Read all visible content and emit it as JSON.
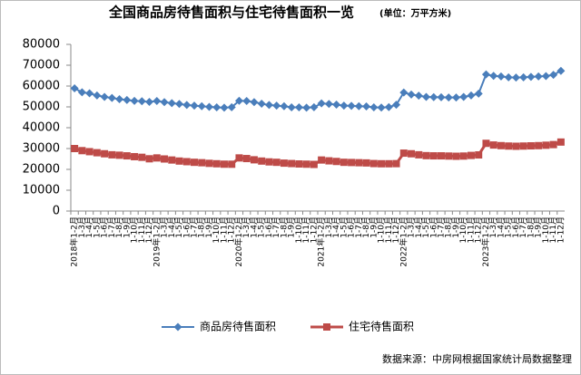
{
  "chart_data": {
    "type": "line",
    "title": "全国商品房待售面积与住宅待售面积一览",
    "subtitle": "(单位：万平方米)",
    "source": "数据来源：中房网根据国家统计局数据整理",
    "categories": [
      "2018年1-2月",
      "1-3月",
      "1-4月",
      "1-5月",
      "1-6月",
      "1-7月",
      "1-8月",
      "1-9月",
      "1-10月",
      "1-11月",
      "1-12月",
      "2019年1-2月",
      "1-3月",
      "1-4月",
      "1-5月",
      "1-6月",
      "1-7月",
      "1-8月",
      "1-9月",
      "1-10月",
      "1-11月",
      "1-12月",
      "2020年1-2月",
      "1-3月",
      "1-4月",
      "1-5月",
      "1-6月",
      "1-7月",
      "1-8月",
      "1-9月",
      "1-10月",
      "1-11月",
      "1-12月",
      "2021年1-2月",
      "1-3月",
      "1-4月",
      "1-5月",
      "1-6月",
      "1-7月",
      "1-8月",
      "1-9月",
      "1-10月",
      "1-11月",
      "1-12月",
      "2022年1-2月",
      "1-3月",
      "1-4月",
      "1-5月",
      "1-6月",
      "1-7月",
      "1-8月",
      "1-9月",
      "1-10月",
      "1-11月",
      "1-12月",
      "2023年1-2月",
      "1-3月",
      "1-4月",
      "1-5月",
      "1-6月",
      "1-7月",
      "1-8月",
      "1-9月",
      "1-10月",
      "1-11月",
      "1-12月"
    ],
    "series": [
      {
        "name": "商品房待售面积",
        "color": "#4a7ebb",
        "marker": "diamond",
        "values": [
          58923,
          57000,
          56500,
          55500,
          54800,
          54300,
          53700,
          53300,
          52900,
          52700,
          52414,
          52810,
          52300,
          51800,
          51400,
          50900,
          50600,
          50300,
          50000,
          49800,
          49600,
          49821,
          52917,
          52800,
          52300,
          51500,
          50900,
          50600,
          50300,
          49800,
          49800,
          49600,
          49850,
          51700,
          51400,
          51100,
          50600,
          50500,
          50300,
          50200,
          49800,
          49700,
          49900,
          51023,
          56900,
          55900,
          55400,
          54800,
          54700,
          54600,
          54500,
          54500,
          54800,
          55500,
          56366,
          65600,
          64900,
          64600,
          64200,
          64100,
          64200,
          64400,
          64600,
          64800,
          65400,
          67295
        ]
      },
      {
        "name": "住宅待售面积",
        "color": "#be4b48",
        "marker": "square",
        "values": [
          30000,
          29000,
          28500,
          28000,
          27500,
          27000,
          26800,
          26500,
          26100,
          25800,
          25091,
          25500,
          25000,
          24500,
          24000,
          23700,
          23400,
          23200,
          22900,
          22700,
          22500,
          22473,
          25500,
          25200,
          24600,
          24000,
          23600,
          23400,
          23000,
          22800,
          22600,
          22500,
          22379,
          24500,
          24100,
          23800,
          23400,
          23300,
          23200,
          23100,
          22800,
          22700,
          22700,
          22761,
          27800,
          27500,
          27000,
          26600,
          26500,
          26500,
          26400,
          26300,
          26400,
          26700,
          26947,
          32500,
          31700,
          31400,
          31200,
          31100,
          31200,
          31300,
          31400,
          31600,
          31900,
          33119
        ]
      }
    ],
    "ylim": [
      0,
      80000
    ],
    "yticks": [
      0,
      10000,
      20000,
      30000,
      40000,
      50000,
      60000,
      70000,
      80000
    ],
    "grid": false,
    "legend": "bottom"
  }
}
